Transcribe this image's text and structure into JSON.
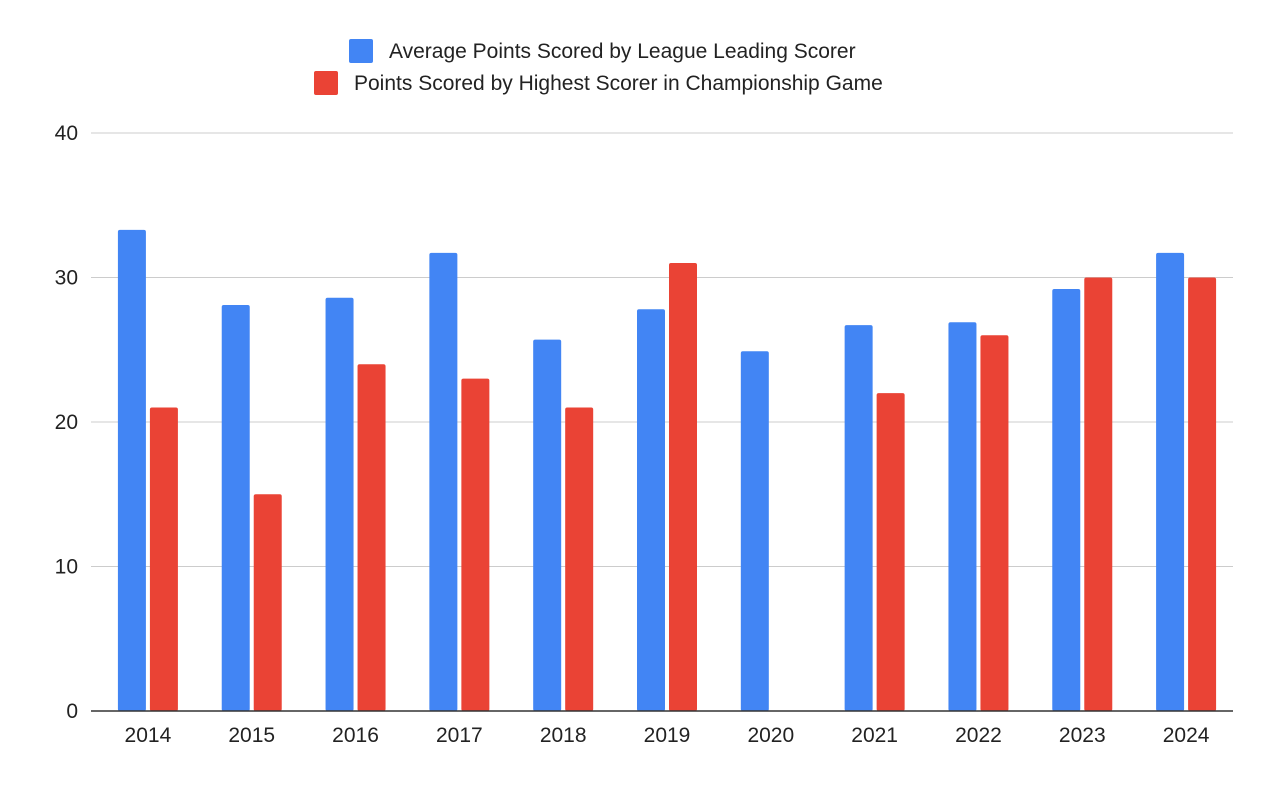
{
  "chart_data": {
    "type": "bar",
    "title": "",
    "xlabel": "",
    "ylabel": "",
    "categories": [
      "2014",
      "2015",
      "2016",
      "2017",
      "2018",
      "2019",
      "2020",
      "2021",
      "2022",
      "2023",
      "2024"
    ],
    "series": [
      {
        "name": "Average Points Scored by League Leading Scorer",
        "color": "#4285f4",
        "values": [
          33.3,
          28.1,
          28.6,
          31.7,
          25.7,
          27.8,
          24.9,
          26.7,
          26.9,
          29.2,
          31.7
        ]
      },
      {
        "name": "Points Scored by Highest Scorer in Championship Game",
        "color": "#ea4335",
        "values": [
          21,
          15,
          24,
          23,
          21,
          31,
          null,
          22,
          26,
          30,
          30
        ]
      }
    ],
    "ylim": [
      0,
      40
    ],
    "yticks": [
      "0",
      "10",
      "20",
      "30",
      "40"
    ],
    "grid": true,
    "legend_position": "top-center"
  }
}
